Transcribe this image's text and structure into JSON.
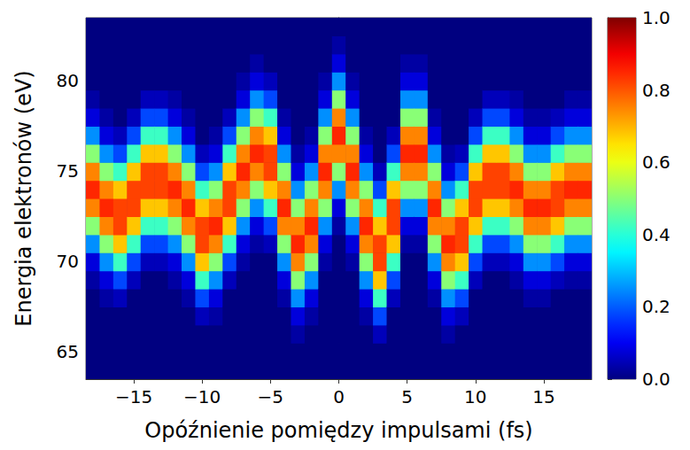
{
  "chart_data": {
    "type": "heatmap",
    "x_label": "Opóźnienie pomiędzy impulsami (fs)",
    "y_label": "Energia elektronów (eV)",
    "xlim": [
      -18.5,
      18.5
    ],
    "xticks": [
      {
        "value": -15,
        "label": "−15"
      },
      {
        "value": -10,
        "label": "−10"
      },
      {
        "value": -5,
        "label": "−5"
      },
      0,
      5,
      10,
      15
    ],
    "ylim": [
      63.5,
      83.5
    ],
    "yticks": [
      65,
      70,
      75,
      80
    ],
    "grid": false,
    "x": [
      -18,
      -17,
      -16,
      -15,
      -14,
      -13,
      -12,
      -11,
      -10,
      -9,
      -8,
      -7,
      -6,
      -5,
      -4,
      -3,
      -2,
      -1,
      0,
      1,
      2,
      3,
      4,
      5,
      6,
      7,
      8,
      9,
      10,
      11,
      12,
      13,
      14,
      15,
      16,
      17,
      18
    ],
    "y": [
      64,
      65,
      66,
      67,
      68,
      69,
      70,
      71,
      72,
      73,
      74,
      75,
      76,
      77,
      78,
      79,
      80,
      81,
      82,
      83
    ],
    "values": [
      [
        0,
        0,
        0,
        0,
        0,
        0.03,
        0.08,
        0.25,
        0.5,
        0.75,
        0.85,
        0.75,
        0.5,
        0.25,
        0.08,
        0.03,
        0,
        0,
        0,
        0
      ],
      [
        0,
        0,
        0,
        0,
        0.03,
        0.08,
        0.25,
        0.5,
        0.75,
        0.85,
        0.75,
        0.5,
        0.25,
        0.08,
        0.03,
        0,
        0,
        0,
        0,
        0
      ],
      [
        0,
        0,
        0,
        0,
        0.05,
        0.18,
        0.42,
        0.68,
        0.82,
        0.82,
        0.68,
        0.42,
        0.18,
        0.05,
        0,
        0,
        0,
        0,
        0,
        0
      ],
      [
        0,
        0,
        0,
        0,
        0,
        0.05,
        0.18,
        0.42,
        0.68,
        0.82,
        0.82,
        0.68,
        0.42,
        0.18,
        0.05,
        0,
        0,
        0,
        0,
        0
      ],
      [
        0,
        0,
        0,
        0,
        0,
        0,
        0.05,
        0.18,
        0.42,
        0.68,
        0.82,
        0.82,
        0.68,
        0.42,
        0.18,
        0.05,
        0,
        0,
        0,
        0
      ],
      [
        0,
        0,
        0,
        0,
        0,
        0,
        0.05,
        0.18,
        0.42,
        0.68,
        0.82,
        0.82,
        0.68,
        0.42,
        0.18,
        0.05,
        0,
        0,
        0,
        0
      ],
      [
        0,
        0,
        0,
        0,
        0,
        0.03,
        0.08,
        0.25,
        0.5,
        0.75,
        0.85,
        0.75,
        0.5,
        0.25,
        0.08,
        0.03,
        0,
        0,
        0,
        0
      ],
      [
        0,
        0,
        0,
        0,
        0.03,
        0.08,
        0.25,
        0.5,
        0.75,
        0.85,
        0.75,
        0.5,
        0.25,
        0.08,
        0.03,
        0,
        0,
        0,
        0,
        0
      ],
      [
        0,
        0,
        0,
        0.05,
        0.18,
        0.42,
        0.68,
        0.82,
        0.82,
        0.68,
        0.42,
        0.18,
        0.05,
        0,
        0,
        0,
        0,
        0,
        0,
        0
      ],
      [
        0,
        0,
        0,
        0.03,
        0.08,
        0.25,
        0.5,
        0.75,
        0.85,
        0.75,
        0.5,
        0.25,
        0.08,
        0.03,
        0,
        0,
        0,
        0,
        0,
        0
      ],
      [
        0,
        0,
        0,
        0,
        0,
        0.05,
        0.18,
        0.42,
        0.68,
        0.82,
        0.82,
        0.68,
        0.42,
        0.18,
        0.05,
        0,
        0,
        0,
        0,
        0
      ],
      [
        0,
        0,
        0,
        0,
        0,
        0,
        0.03,
        0.08,
        0.25,
        0.5,
        0.75,
        0.85,
        0.75,
        0.5,
        0.25,
        0.08,
        0.03,
        0,
        0,
        0
      ],
      [
        0,
        0,
        0,
        0,
        0,
        0,
        0,
        0.03,
        0.08,
        0.25,
        0.5,
        0.75,
        0.85,
        0.75,
        0.5,
        0.25,
        0.08,
        0.03,
        0,
        0
      ],
      [
        0,
        0,
        0,
        0,
        0,
        0,
        0,
        0.05,
        0.18,
        0.42,
        0.68,
        0.82,
        0.82,
        0.68,
        0.42,
        0.18,
        0.05,
        0,
        0,
        0
      ],
      [
        0,
        0,
        0,
        0,
        0.03,
        0.08,
        0.25,
        0.5,
        0.75,
        0.85,
        0.75,
        0.5,
        0.25,
        0.08,
        0.03,
        0,
        0,
        0,
        0,
        0
      ],
      [
        0,
        0,
        0.03,
        0.08,
        0.25,
        0.5,
        0.75,
        0.85,
        0.75,
        0.5,
        0.25,
        0.08,
        0.03,
        0,
        0,
        0,
        0,
        0,
        0,
        0
      ],
      [
        0,
        0,
        0,
        0.03,
        0.08,
        0.25,
        0.5,
        0.75,
        0.85,
        0.75,
        0.5,
        0.25,
        0.08,
        0.03,
        0,
        0,
        0,
        0,
        0,
        0
      ],
      [
        0,
        0,
        0,
        0,
        0,
        0,
        0.03,
        0.08,
        0.25,
        0.5,
        0.75,
        0.85,
        0.75,
        0.5,
        0.25,
        0.08,
        0.03,
        0,
        0,
        0
      ],
      [
        0,
        0,
        0,
        0,
        0,
        0,
        0,
        0,
        0.03,
        0.08,
        0.25,
        0.5,
        0.75,
        0.85,
        0.75,
        0.5,
        0.25,
        0.08,
        0.03,
        0
      ],
      [
        0,
        0,
        0,
        0,
        0,
        0,
        0.03,
        0.08,
        0.25,
        0.5,
        0.75,
        0.85,
        0.75,
        0.5,
        0.25,
        0.08,
        0.03,
        0,
        0,
        0
      ],
      [
        0,
        0,
        0,
        0.03,
        0.08,
        0.25,
        0.5,
        0.75,
        0.85,
        0.75,
        0.5,
        0.25,
        0.08,
        0.03,
        0,
        0,
        0,
        0,
        0,
        0
      ],
      [
        0,
        0,
        0.05,
        0.18,
        0.42,
        0.68,
        0.82,
        0.82,
        0.68,
        0.42,
        0.18,
        0.05,
        0,
        0,
        0,
        0,
        0,
        0,
        0,
        0
      ],
      [
        0,
        0,
        0,
        0,
        0.05,
        0.18,
        0.42,
        0.68,
        0.82,
        0.82,
        0.68,
        0.42,
        0.18,
        0.05,
        0,
        0,
        0,
        0,
        0,
        0
      ],
      [
        0,
        0,
        0,
        0,
        0,
        0,
        0,
        0.03,
        0.08,
        0.25,
        0.5,
        0.75,
        0.85,
        0.75,
        0.5,
        0.25,
        0.08,
        0.03,
        0,
        0
      ],
      [
        0,
        0,
        0,
        0,
        0,
        0,
        0,
        0.03,
        0.08,
        0.25,
        0.5,
        0.75,
        0.85,
        0.75,
        0.5,
        0.25,
        0.08,
        0.03,
        0,
        0
      ],
      [
        0,
        0,
        0,
        0,
        0.03,
        0.08,
        0.25,
        0.5,
        0.75,
        0.85,
        0.75,
        0.5,
        0.25,
        0.08,
        0.03,
        0,
        0,
        0,
        0,
        0
      ],
      [
        0,
        0,
        0.03,
        0.08,
        0.25,
        0.5,
        0.75,
        0.85,
        0.75,
        0.5,
        0.25,
        0.08,
        0.03,
        0,
        0,
        0,
        0,
        0,
        0,
        0
      ],
      [
        0,
        0,
        0,
        0.05,
        0.18,
        0.42,
        0.68,
        0.82,
        0.82,
        0.68,
        0.42,
        0.18,
        0.05,
        0,
        0,
        0,
        0,
        0,
        0,
        0
      ],
      [
        0,
        0,
        0,
        0,
        0,
        0.05,
        0.18,
        0.42,
        0.68,
        0.82,
        0.82,
        0.68,
        0.42,
        0.18,
        0.05,
        0,
        0,
        0,
        0,
        0
      ],
      [
        0,
        0,
        0,
        0,
        0,
        0,
        0.05,
        0.18,
        0.42,
        0.68,
        0.82,
        0.82,
        0.68,
        0.42,
        0.18,
        0.05,
        0,
        0,
        0,
        0
      ],
      [
        0,
        0,
        0,
        0,
        0,
        0,
        0.05,
        0.18,
        0.42,
        0.68,
        0.82,
        0.82,
        0.68,
        0.42,
        0.18,
        0.05,
        0,
        0,
        0,
        0
      ],
      [
        0,
        0,
        0,
        0,
        0,
        0.03,
        0.08,
        0.25,
        0.5,
        0.75,
        0.85,
        0.75,
        0.5,
        0.25,
        0.08,
        0.03,
        0,
        0,
        0,
        0
      ],
      [
        0,
        0,
        0,
        0,
        0.03,
        0.08,
        0.25,
        0.5,
        0.75,
        0.85,
        0.75,
        0.5,
        0.25,
        0.08,
        0.03,
        0,
        0,
        0,
        0,
        0
      ],
      [
        0,
        0,
        0,
        0,
        0.03,
        0.08,
        0.25,
        0.5,
        0.75,
        0.85,
        0.75,
        0.5,
        0.25,
        0.08,
        0.03,
        0,
        0,
        0,
        0,
        0
      ],
      [
        0,
        0,
        0,
        0,
        0,
        0.05,
        0.18,
        0.42,
        0.68,
        0.82,
        0.82,
        0.68,
        0.42,
        0.18,
        0.05,
        0,
        0,
        0,
        0,
        0
      ],
      [
        0,
        0,
        0,
        0,
        0,
        0.03,
        0.08,
        0.25,
        0.5,
        0.75,
        0.85,
        0.75,
        0.5,
        0.25,
        0.08,
        0.03,
        0,
        0,
        0,
        0
      ],
      [
        0,
        0,
        0,
        0,
        0,
        0.03,
        0.08,
        0.25,
        0.5,
        0.75,
        0.85,
        0.75,
        0.5,
        0.25,
        0.08,
        0.03,
        0,
        0,
        0,
        0
      ]
    ],
    "colorbar": {
      "range": [
        0,
        1
      ],
      "ticks": [
        {
          "value": 0,
          "label": "0.0"
        },
        {
          "value": 0.2,
          "label": "0.2"
        },
        {
          "value": 0.4,
          "label": "0.4"
        },
        {
          "value": 0.6,
          "label": "0.6"
        },
        {
          "value": 0.8,
          "label": "0.8"
        },
        {
          "value": 1,
          "label": "1.0"
        }
      ]
    }
  }
}
